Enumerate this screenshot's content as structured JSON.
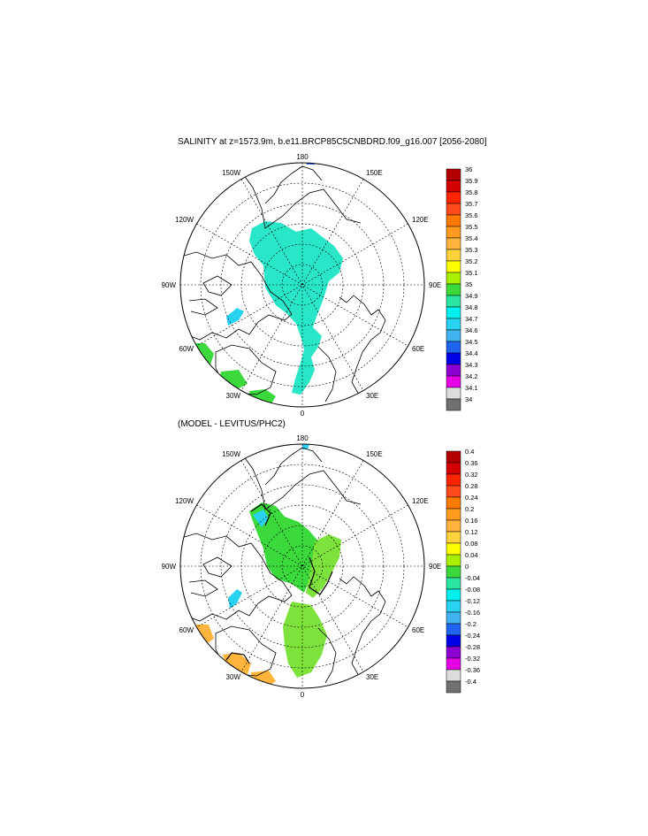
{
  "top_panel": {
    "title": "SALINITY at z=1573.9m, b.e11.BRCP85C5CNBDRD.f09_g16.007 [2056-2080]",
    "lon_labels": [
      "180",
      "150E",
      "120E",
      "90E",
      "60E",
      "30E",
      "0",
      "30W",
      "60W",
      "90W",
      "120W",
      "150W"
    ],
    "colorbar": {
      "labels": [
        "36",
        "35.9",
        "35.8",
        "35.7",
        "35.6",
        "35.5",
        "35.4",
        "35.3",
        "35.2",
        "35.1",
        "35",
        "34.9",
        "34.8",
        "34.7",
        "34.6",
        "34.5",
        "34.4",
        "34.3",
        "34.2",
        "34.1",
        "34"
      ],
      "colors": [
        "#b30000",
        "#d40000",
        "#ff2400",
        "#ff4a1a",
        "#ff7a00",
        "#ff9a1f",
        "#ffb43c",
        "#ffd23c",
        "#ffff00",
        "#a8f000",
        "#3cd93c",
        "#2ae6a0",
        "#00f0f0",
        "#28d2f0",
        "#40b4f0",
        "#1e64f0",
        "#0000e6",
        "#8c00d2",
        "#e600e6",
        "#dcdcdc",
        "#707070"
      ]
    }
  },
  "bottom_panel": {
    "title": "(MODEL - LEVITUS/PHC2)",
    "lon_labels": [
      "180",
      "150E",
      "120E",
      "90E",
      "60E",
      "30E",
      "0",
      "30W",
      "60W",
      "90W",
      "120W",
      "150W"
    ],
    "colorbar": {
      "labels": [
        "0.4",
        "0.36",
        "0.32",
        "0.28",
        "0.24",
        "0.2",
        "0.16",
        "0.12",
        "0.08",
        "0.04",
        "0",
        "-0.04",
        "-0.08",
        "-0.12",
        "-0.16",
        "-0.2",
        "-0.24",
        "-0.28",
        "-0.32",
        "-0.36",
        "-0.4"
      ],
      "colors": [
        "#b30000",
        "#d40000",
        "#ff2400",
        "#ff4a1a",
        "#ff7a00",
        "#ff9a1f",
        "#ffb43c",
        "#ffd23c",
        "#ffff00",
        "#a8f000",
        "#3cd93c",
        "#2ae6a0",
        "#00f0f0",
        "#28d2f0",
        "#40b4f0",
        "#1e64f0",
        "#0000e6",
        "#8c00d2",
        "#e600e6",
        "#dcdcdc",
        "#707070"
      ]
    }
  },
  "field_colors": {
    "top_main": "#2ae6c8",
    "top_patch_green": "#3cd93c",
    "top_patch_light": "#28d2f0",
    "top_tiny_blue": "#1e64f0",
    "bottom_main": "#3cd93c",
    "bottom_east": "#7ee23c",
    "bottom_orange": "#ffb43c",
    "bottom_cyan": "#28d2f0"
  }
}
